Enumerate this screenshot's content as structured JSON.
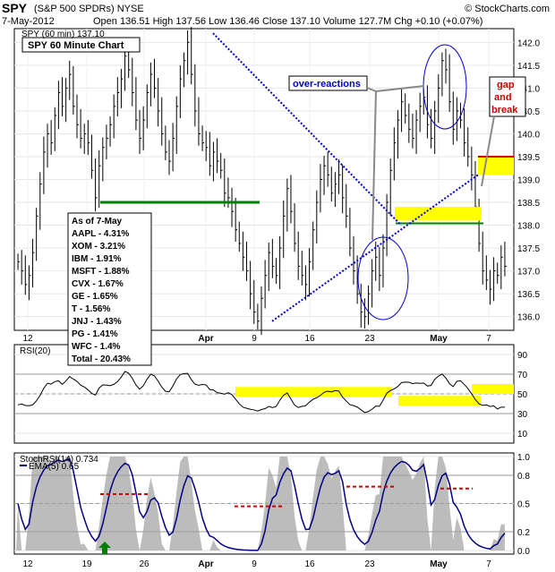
{
  "header": {
    "symbol": "SPY",
    "name": "(S&P 500 SPDRs) NYSE",
    "copyright": "© StockCharts.com",
    "date": "7-May-2012",
    "quote": "Open 136.51  High 137.56  Low 136.46  Close 137.10  Volume 127.7M  Chg +0.10 (+0.07%)"
  },
  "colors": {
    "price_bars": "#000000",
    "trendline": "#0000cc",
    "support": "#008000",
    "resistance": "#cc0000",
    "highlight": "#ffff00",
    "rsi_line": "#000000",
    "stoch_line": "#000080",
    "stoch_fill": "#a0a0a0"
  },
  "chart_data": [
    {
      "type": "line",
      "panel": "price",
      "title": "SPY 60 Minute Chart",
      "legend": "SPY (60 min) 137.10",
      "x_labels": [
        "12",
        "19",
        "26",
        "Apr",
        "9",
        "16",
        "23",
        "May",
        "7"
      ],
      "y_ticks": [
        "136.0",
        "136.5",
        "137.0",
        "137.5",
        "138.0",
        "138.5",
        "139.0",
        "139.5",
        "140.0",
        "140.5",
        "141.0",
        "141.5",
        "142.0"
      ],
      "ylim": [
        135.7,
        142.3
      ],
      "close_series": [
        137.2,
        137.0,
        136.7,
        136.9,
        137.4,
        138.2,
        138.9,
        139.6,
        140.0,
        139.8,
        140.4,
        140.9,
        140.6,
        141.0,
        141.3,
        140.6,
        140.2,
        139.9,
        140.0,
        139.8,
        139.2,
        138.6,
        139.3,
        139.7,
        139.9,
        140.2,
        140.6,
        140.9,
        141.2,
        141.7,
        141.4,
        140.9,
        140.3,
        139.9,
        140.3,
        140.9,
        141.3,
        141.0,
        140.5,
        140.0,
        139.6,
        139.4,
        139.9,
        140.6,
        141.2,
        141.6,
        142.0,
        141.3,
        140.5,
        140.0,
        139.8,
        139.7,
        139.3,
        139.6,
        139.4,
        139.2,
        138.7,
        138.6,
        138.3,
        137.9,
        137.6,
        137.3,
        137.0,
        136.5,
        136.1,
        135.9,
        136.4,
        136.9,
        137.4,
        137.1,
        136.9,
        137.5,
        138.2,
        138.8,
        138.3,
        137.6,
        137.1,
        136.9,
        136.7,
        137.2,
        137.9,
        138.5,
        139.0,
        139.3,
        139.1,
        138.7,
        138.9,
        139.1,
        138.6,
        138.2,
        137.5,
        137.0,
        136.5,
        136.1,
        136.0,
        136.5,
        137.0,
        137.3,
        136.9,
        137.5,
        138.5,
        139.2,
        139.8,
        140.3,
        140.7,
        140.4,
        140.1,
        139.9,
        140.3,
        140.6,
        140.8,
        140.2,
        139.9,
        140.5,
        141.0,
        141.6,
        141.4,
        140.7,
        140.1,
        140.5,
        140.3,
        139.8,
        139.5,
        139.1,
        138.4,
        137.6,
        137.0,
        136.8,
        136.6,
        137.0,
        136.9,
        137.3,
        137.1
      ],
      "annotations": {
        "over_reactions": "over-reactions",
        "gap_and_break": [
          "gap",
          "and",
          "break"
        ]
      },
      "holdings": {
        "title": "As of 7-May",
        "items": [
          "AAPL - 4.31%",
          "XOM - 3.21%",
          "IBM - 1.91%",
          "MSFT - 1.88%",
          "CVX - 1.67%",
          "GE - 1.65%",
          "T - 1.56%",
          "JNJ - 1.43%",
          "PG - 1.41%",
          "WFC - 1.4%",
          "Total - 20.43%"
        ]
      },
      "support_level": 138.5,
      "resistance_level": 139.5,
      "zone_a": [
        138.1,
        138.4
      ],
      "zone_b": [
        139.1,
        139.5
      ]
    },
    {
      "type": "line",
      "panel": "rsi",
      "legend": "RSI(20)",
      "y_ticks": [
        "10",
        "30",
        "50",
        "70",
        "90"
      ],
      "ylim": [
        0,
        100
      ],
      "levels": [
        30,
        50,
        70
      ]
    },
    {
      "type": "area",
      "panel": "stochrsi",
      "legend": "StochRSI(14) 0.734",
      "legend2": "EMA(5) 0.65",
      "y_ticks": [
        "0.0",
        "0.2",
        "0.5",
        "0.8",
        "1.0"
      ],
      "ylim": [
        0,
        1
      ],
      "levels": [
        0.2,
        0.5,
        0.8
      ]
    }
  ]
}
